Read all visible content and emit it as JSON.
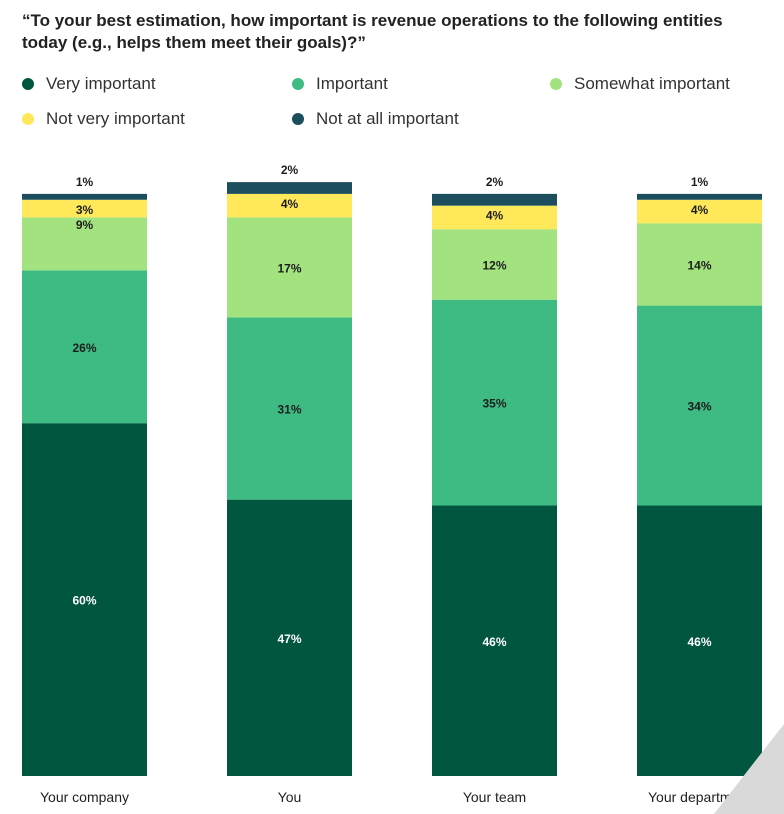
{
  "title": "“To your best estimation, how important is revenue operations to the following entities today (e.g., helps them meet their goals)?”",
  "chart_data": {
    "type": "bar",
    "stacked": true,
    "categories": [
      "Your company",
      "You",
      "Your team",
      "Your department"
    ],
    "series": [
      {
        "name": "Very important",
        "color": "#01563f",
        "values": [
          60,
          47,
          46,
          46
        ],
        "labels": [
          "60%",
          "47%",
          "46%",
          "46%"
        ]
      },
      {
        "name": "Important",
        "color": "#3dbb82",
        "values": [
          26,
          31,
          35,
          34
        ],
        "labels": [
          "26%",
          "31%",
          "35%",
          "34%"
        ]
      },
      {
        "name": "Somewhat important",
        "color": "#a3e37f",
        "values": [
          9,
          17,
          12,
          14
        ],
        "labels": [
          "9%",
          "17%",
          "12%",
          "14%"
        ]
      },
      {
        "name": "Not very important",
        "color": "#ffe95a",
        "values": [
          3,
          4,
          4,
          4
        ],
        "labels": [
          "3%",
          "4%",
          "4%",
          "4%"
        ]
      },
      {
        "name": "Not at all important",
        "color": "#1c4e5e",
        "values": [
          1,
          2,
          2,
          1
        ],
        "labels": [
          "1%",
          "2%",
          "2%",
          "1%"
        ]
      }
    ],
    "ylim": [
      0,
      100
    ]
  }
}
